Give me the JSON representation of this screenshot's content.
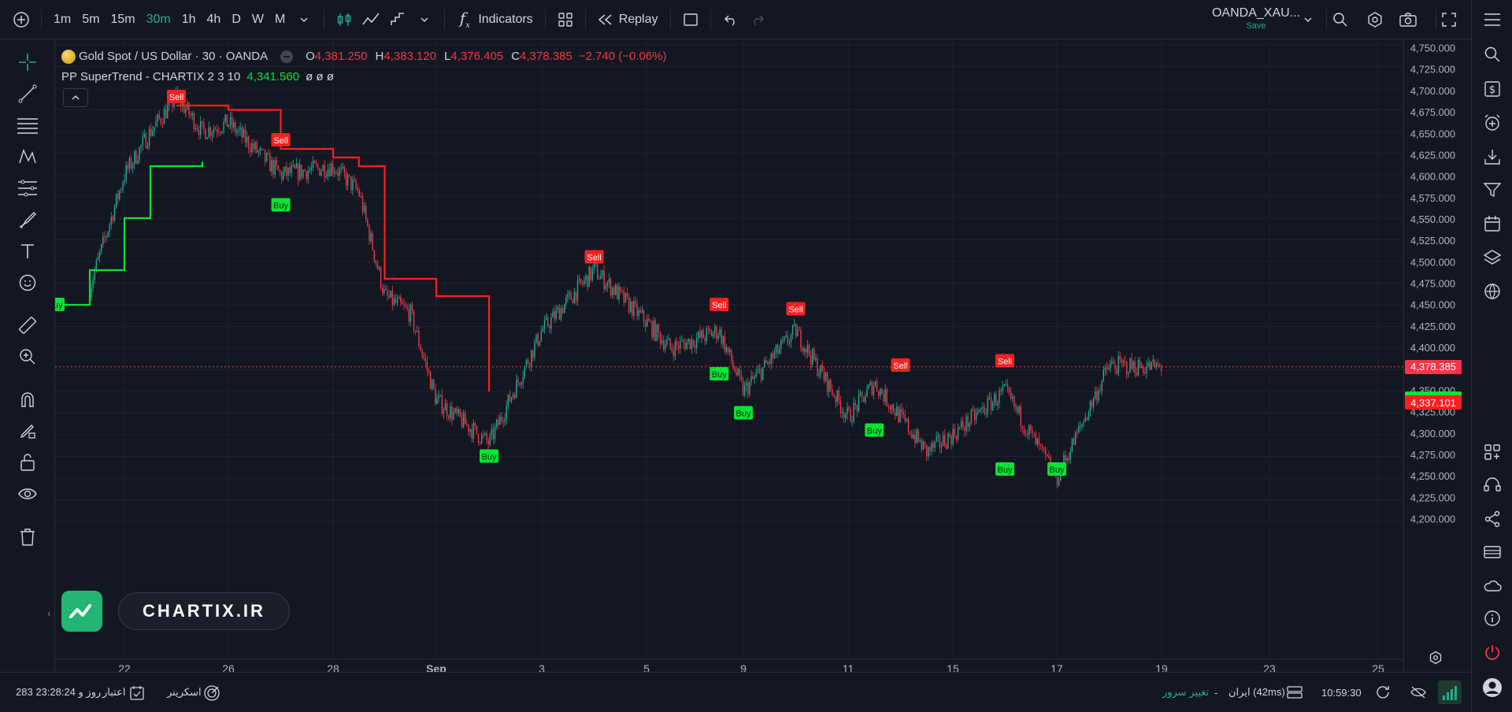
{
  "toolbar": {
    "timeframes": [
      "1m",
      "5m",
      "15m",
      "30m",
      "1h",
      "4h",
      "D",
      "W",
      "M"
    ],
    "active_timeframe": "30m",
    "indicators_label": "Indicators",
    "replay_label": "Replay"
  },
  "symbol": {
    "name": "OANDA_XAU...",
    "save_label": "Save"
  },
  "legend": {
    "title": "Gold Spot / US Dollar · 30 · OANDA",
    "o_label": "O",
    "o": "4,381.250",
    "h_label": "H",
    "h": "4,383.120",
    "l_label": "L",
    "l": "4,376.405",
    "c_label": "C",
    "c": "4,378.385",
    "change": "−2.740 (−0.06%)",
    "indicator_name": "PP SuperTrend - CHARTIX 2 3 10",
    "indicator_value": "4,341.560",
    "indicator_extra": "ø ø ø"
  },
  "price_scale": {
    "labels": [
      "4,750.000",
      "4,725.000",
      "4,700.000",
      "4,675.000",
      "4,650.000",
      "4,625.000",
      "4,600.000",
      "4,575.000",
      "4,550.000",
      "4,525.000",
      "4,500.000",
      "4,475.000",
      "4,450.000",
      "4,425.000",
      "4,400.000",
      "4,375.000",
      "4,350.000",
      "4,325.000",
      "4,300.000",
      "4,275.000",
      "4,250.000",
      "4,225.000",
      "4,200.000"
    ],
    "current_price": "4,378.385",
    "supertrend_price": "4,341.560",
    "other_price": "4,337.101"
  },
  "time_scale": {
    "labels": [
      "22",
      "26",
      "28",
      "Sep",
      "3",
      "5",
      "9",
      "11",
      "15",
      "17",
      "19",
      "23",
      "25"
    ]
  },
  "chart_data": {
    "type": "candlestick",
    "symbol": "Gold Spot / US Dollar",
    "timeframe": "30",
    "ylim": [
      4200,
      4750
    ],
    "ylabel": "",
    "x_ticks": [
      "22",
      "26",
      "28",
      "Sep",
      "3",
      "5",
      "9",
      "11",
      "15",
      "17",
      "19",
      "23",
      "25"
    ],
    "last_close": 4378.385,
    "close_path": [
      {
        "x": "Aug 21",
        "y": 4470
      },
      {
        "x": "Aug 22",
        "y": 4600
      },
      {
        "x": "Aug 23",
        "y": 4650
      },
      {
        "x": "Aug 24",
        "y": 4690
      },
      {
        "x": "Aug 25",
        "y": 4650
      },
      {
        "x": "Aug 26",
        "y": 4660
      },
      {
        "x": "Aug 27",
        "y": 4600
      },
      {
        "x": "Aug 28",
        "y": 4610
      },
      {
        "x": "Aug 29",
        "y": 4580
      },
      {
        "x": "Aug 30",
        "y": 4460
      },
      {
        "x": "Aug 31",
        "y": 4440
      },
      {
        "x": "Sep 1",
        "y": 4340
      },
      {
        "x": "Sep 2",
        "y": 4290
      },
      {
        "x": "Sep 3",
        "y": 4420
      },
      {
        "x": "Sep 4",
        "y": 4490
      },
      {
        "x": "Sep 5",
        "y": 4430
      },
      {
        "x": "Sep 6",
        "y": 4400
      },
      {
        "x": "Sep 8",
        "y": 4420
      },
      {
        "x": "Sep 9",
        "y": 4350
      },
      {
        "x": "Sep 10",
        "y": 4420
      },
      {
        "x": "Sep 11",
        "y": 4320
      },
      {
        "x": "Sep 12",
        "y": 4360
      },
      {
        "x": "Sep 14",
        "y": 4280
      },
      {
        "x": "Sep 15",
        "y": 4300
      },
      {
        "x": "Sep 16",
        "y": 4350
      },
      {
        "x": "Sep 17",
        "y": 4250
      },
      {
        "x": "Sep 18",
        "y": 4380
      },
      {
        "x": "Sep 19",
        "y": 4378
      }
    ],
    "supertrend_down": [
      {
        "x": "Aug 24",
        "y": 4680
      },
      {
        "x": "Aug 26",
        "y": 4675
      },
      {
        "x": "Aug 27",
        "y": 4630
      },
      {
        "x": "Aug 28",
        "y": 4620
      },
      {
        "x": "Aug 29",
        "y": 4610
      },
      {
        "x": "Aug 30",
        "y": 4480
      },
      {
        "x": "Sep 1",
        "y": 4460
      },
      {
        "x": "Sep 2",
        "y": 4350
      }
    ],
    "supertrend_up": [
      {
        "x": "Aug 20",
        "y": 4450
      },
      {
        "x": "Aug 21",
        "y": 4490
      },
      {
        "x": "Aug 22",
        "y": 4550
      },
      {
        "x": "Aug 23",
        "y": 4610
      },
      {
        "x": "Aug 25",
        "y": 4615
      }
    ],
    "signals": [
      {
        "label": "Sell",
        "x": "Aug 24",
        "y": 4690
      },
      {
        "label": "Sell",
        "x": "Aug 27",
        "y": 4640
      },
      {
        "label": "Buy",
        "x": "Aug 27",
        "y": 4565
      },
      {
        "label": "Buy",
        "x": "Aug 20",
        "y": 4450
      },
      {
        "label": "Buy",
        "x": "Sep 2",
        "y": 4275
      },
      {
        "label": "Sell",
        "x": "Sep 4",
        "y": 4505
      },
      {
        "label": "Buy",
        "x": "Sep 8",
        "y": 4370
      },
      {
        "label": "Sell",
        "x": "Sep 8",
        "y": 4450
      },
      {
        "label": "Buy",
        "x": "Sep 9",
        "y": 4325
      },
      {
        "label": "Sell",
        "x": "Sep 10",
        "y": 4445
      },
      {
        "label": "Buy",
        "x": "Sep 12",
        "y": 4305
      },
      {
        "label": "Sell",
        "x": "Sep 13",
        "y": 4380
      },
      {
        "label": "Buy",
        "x": "Sep 16",
        "y": 4260
      },
      {
        "label": "Sell",
        "x": "Sep 16",
        "y": 4385
      },
      {
        "label": "Buy",
        "x": "Sep 17",
        "y": 4260
      }
    ]
  },
  "brand": {
    "text": "CHARTIX.IR"
  },
  "status": {
    "days_left": "283 روز و 23:28:24",
    "credit_label": "اعتبار",
    "screener_label": "اسکرینر",
    "change_server": "تغییر سرور",
    "dash": "-",
    "server": "ایران (42ms)",
    "time": "10:59:30"
  },
  "colors": {
    "up": "#22ab94",
    "down": "#f23645",
    "buy": "#00e632",
    "sell": "#ff1f1f",
    "accent": "#2962ff"
  }
}
